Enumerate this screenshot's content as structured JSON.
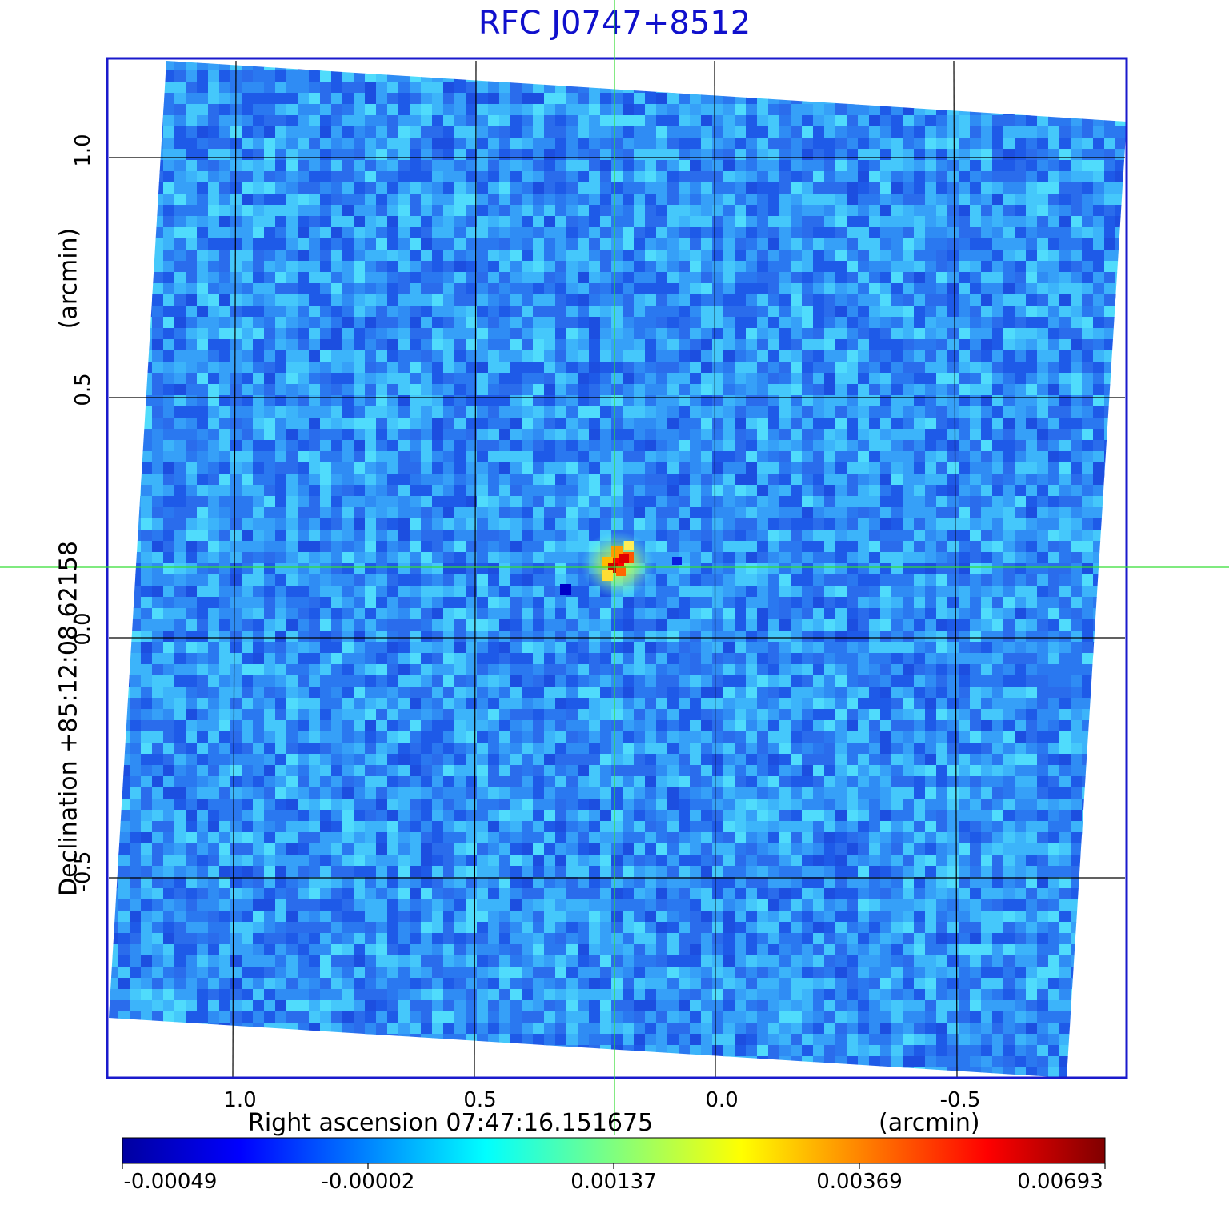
{
  "title": "RFC J0747+8512",
  "x_axis": {
    "label": "Right ascension  07:47:16.151675",
    "unit": "(arcmin)",
    "ticks": [
      "1.0",
      "0.5",
      "0.0",
      "-0.5"
    ]
  },
  "y_axis": {
    "label": "Declination  +85:12:08.62158",
    "unit": "(arcmin)",
    "ticks": [
      "1.0",
      "0.5",
      "0.0",
      "-0.5"
    ]
  },
  "colorbar": {
    "colormap": "jet",
    "ticks": [
      "-0.00049",
      "-0.00002",
      "0.00137",
      "0.00369",
      "0.00693"
    ]
  },
  "colors": {
    "title": "#1010cc",
    "frame": "#1a1acc",
    "crosshair": "#33dd33",
    "grid": "#000000"
  }
}
